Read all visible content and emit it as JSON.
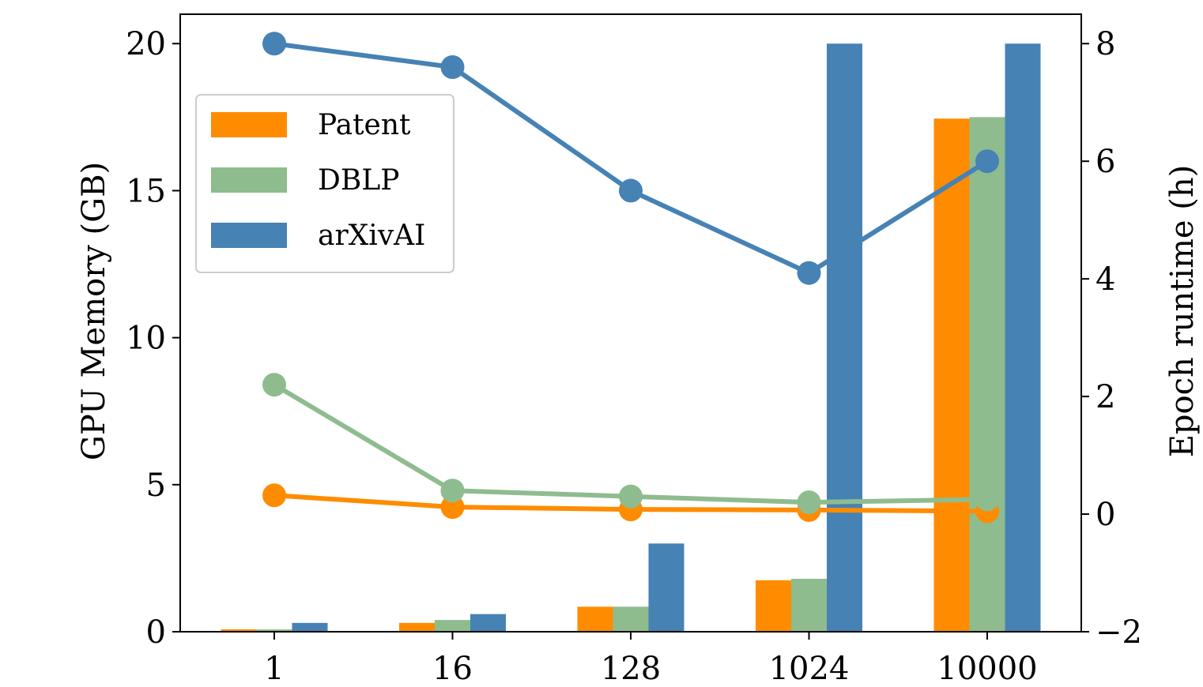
{
  "chart_data": {
    "type": "bar",
    "categories": [
      "1",
      "16",
      "128",
      "1024",
      "10000"
    ],
    "ylabel": "GPU Memory (GB)",
    "y2label": "Epoch runtime (h)",
    "ylim": [
      0,
      21
    ],
    "y2lim": [
      -2,
      8.5
    ],
    "yticks": [
      "0",
      "5",
      "10",
      "15",
      "20"
    ],
    "y2ticks": [
      "−2",
      "0",
      "2",
      "4",
      "6",
      "8"
    ],
    "legend_position": "upper-left",
    "bar_series": [
      {
        "name": "Patent",
        "color": "#ff8c00",
        "values": [
          0.08,
          0.3,
          0.85,
          1.75,
          17.45
        ]
      },
      {
        "name": "DBLP",
        "color": "#8fbc8f",
        "values": [
          0.08,
          0.4,
          0.85,
          1.8,
          17.5
        ]
      },
      {
        "name": "arXivAI",
        "color": "#4682b4",
        "values": [
          0.3,
          0.6,
          3.0,
          20.0,
          20.0
        ]
      }
    ],
    "line_series": [
      {
        "name": "Patent",
        "color": "#ff8c00",
        "axis": "right",
        "values": [
          0.32,
          0.12,
          0.08,
          0.07,
          0.05
        ]
      },
      {
        "name": "DBLP",
        "color": "#8fbc8f",
        "axis": "right",
        "values": [
          2.2,
          0.4,
          0.3,
          0.2,
          0.25
        ]
      },
      {
        "name": "arXivAI",
        "color": "#4682b4",
        "axis": "right",
        "values": [
          8.0,
          7.6,
          5.5,
          4.1,
          6.0
        ]
      }
    ]
  }
}
